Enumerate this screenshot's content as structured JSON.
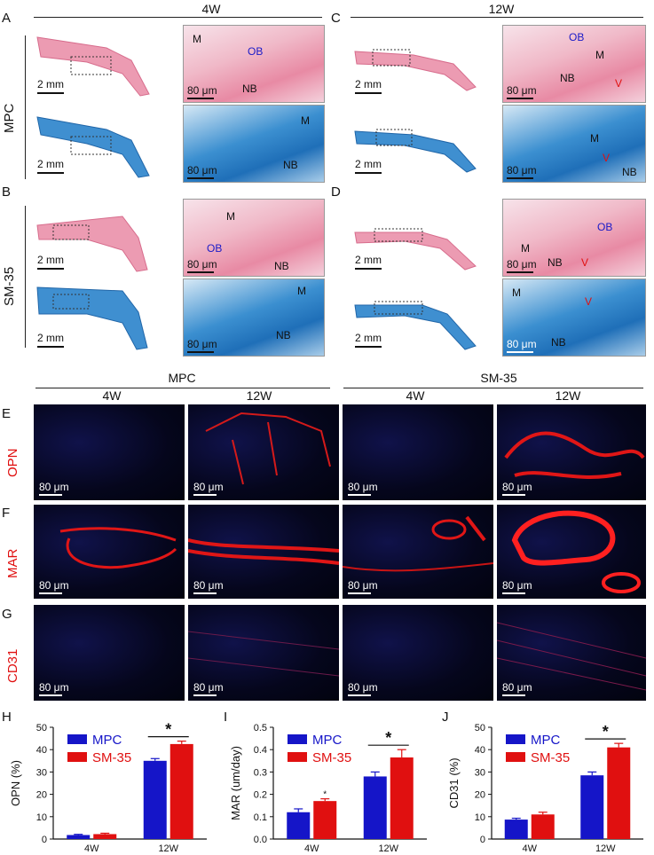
{
  "section_top": {
    "headers": {
      "left": "4W",
      "right": "12W"
    },
    "letters": {
      "a": "A",
      "b": "B",
      "c": "C",
      "d": "D"
    },
    "row_labels": {
      "mpc": "MPC",
      "sm35": "SM-35"
    },
    "labels": {
      "m": "M",
      "ob": "OB",
      "nb": "NB",
      "v": "V"
    },
    "scales": {
      "mm": "2 mm",
      "um": "80 μm"
    }
  },
  "section_mid": {
    "headers": {
      "mpc": "MPC",
      "sm35": "SM-35",
      "w4": "4W",
      "w12": "12W"
    },
    "letters": {
      "e": "E",
      "f": "F",
      "g": "G"
    },
    "row_labels": {
      "opn": "OPN",
      "mar": "MAR",
      "cd31": "CD31"
    },
    "scale": "80 μm"
  },
  "chart_data": [
    {
      "type": "bar",
      "panel": "H",
      "categories": [
        "4W",
        "12W"
      ],
      "series": [
        {
          "name": "MPC",
          "values": [
            1.8,
            35
          ],
          "errors": [
            0.3,
            1.0
          ],
          "color": "#1515c8"
        },
        {
          "name": "SM-35",
          "values": [
            2.2,
            42.5
          ],
          "errors": [
            0.4,
            1.3
          ],
          "color": "#e01010"
        }
      ],
      "ylabel": "OPN (%)",
      "ylim": [
        0,
        50
      ],
      "yticks": [
        0,
        10,
        20,
        30,
        40,
        50
      ],
      "significance": [
        {
          "category": "12W",
          "mark": "*"
        }
      ]
    },
    {
      "type": "bar",
      "panel": "I",
      "categories": [
        "4W",
        "12W"
      ],
      "series": [
        {
          "name": "MPC",
          "values": [
            0.12,
            0.28
          ],
          "errors": [
            0.015,
            0.02
          ],
          "color": "#1515c8"
        },
        {
          "name": "SM-35",
          "values": [
            0.17,
            0.365
          ],
          "errors": [
            0.01,
            0.035
          ],
          "color": "#e01010"
        }
      ],
      "ylabel": "MAR (um/day)",
      "ylim": [
        0,
        0.5
      ],
      "yticks": [
        0.0,
        0.1,
        0.2,
        0.3,
        0.4,
        0.5
      ],
      "ytick_labels": [
        "0.0",
        "0.1",
        "0.2",
        "0.3",
        "0.4",
        "0.5"
      ],
      "significance": [
        {
          "category": "4W",
          "mark": "*",
          "small": true
        },
        {
          "category": "12W",
          "mark": "*"
        }
      ]
    },
    {
      "type": "bar",
      "panel": "J",
      "categories": [
        "4W",
        "12W"
      ],
      "series": [
        {
          "name": "MPC",
          "values": [
            8.7,
            28.5
          ],
          "errors": [
            0.6,
            1.5
          ],
          "color": "#1515c8"
        },
        {
          "name": "SM-35",
          "values": [
            11,
            41
          ],
          "errors": [
            1.0,
            1.8
          ],
          "color": "#e01010"
        }
      ],
      "ylabel": "CD31 (%)",
      "ylim": [
        0,
        50
      ],
      "yticks": [
        0,
        10,
        20,
        30,
        40,
        50
      ],
      "significance": [
        {
          "category": "12W",
          "mark": "*"
        }
      ]
    }
  ]
}
